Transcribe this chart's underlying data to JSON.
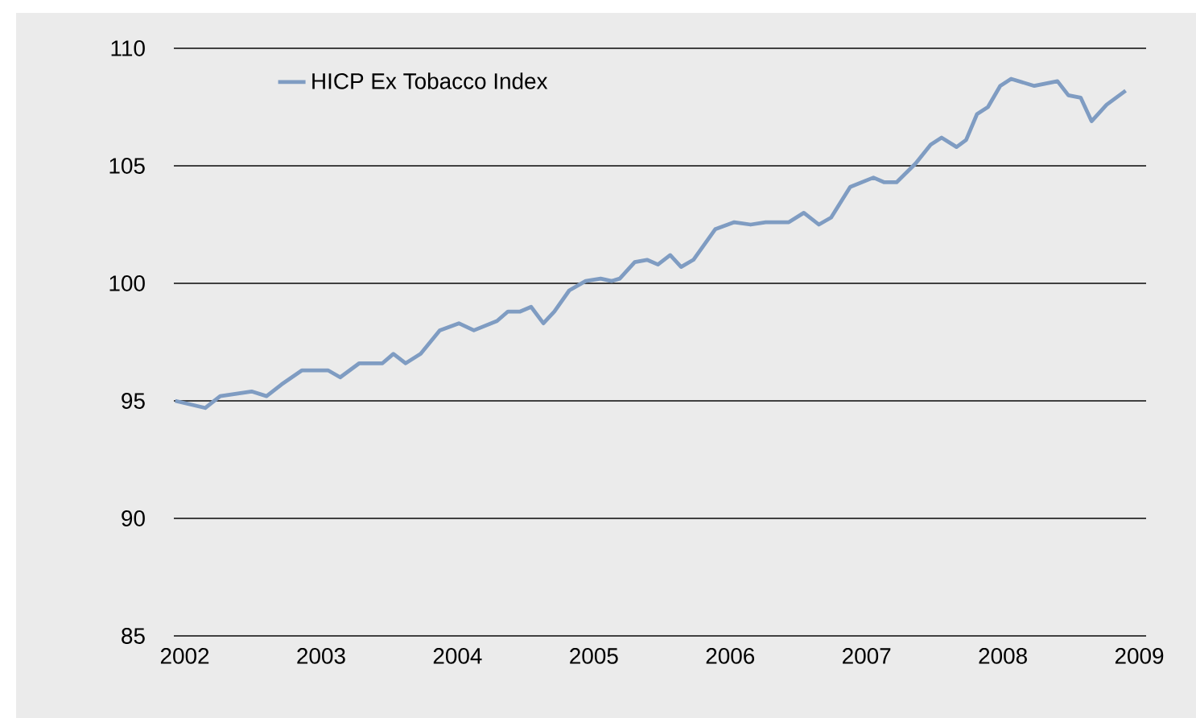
{
  "chart_data": {
    "type": "line",
    "x": [
      2001.93,
      2002.15,
      2002.26,
      2002.38,
      2002.49,
      2002.6,
      2002.71,
      2002.86,
      2003.05,
      2003.14,
      2003.28,
      2003.45,
      2003.53,
      2003.62,
      2003.73,
      2003.87,
      2004.01,
      2004.12,
      2004.29,
      2004.37,
      2004.46,
      2004.54,
      2004.63,
      2004.71,
      2004.82,
      2004.94,
      2005.05,
      2005.13,
      2005.19,
      2005.3,
      2005.39,
      2005.47,
      2005.56,
      2005.64,
      2005.73,
      2005.89,
      2006.03,
      2006.15,
      2006.26,
      2006.43,
      2006.54,
      2006.65,
      2006.74,
      2006.88,
      2007.05,
      2007.13,
      2007.22,
      2007.36,
      2007.47,
      2007.55,
      2007.66,
      2007.73,
      2007.81,
      2007.89,
      2007.98,
      2008.06,
      2008.23,
      2008.4,
      2008.48,
      2008.57,
      2008.65,
      2008.76,
      2008.9
    ],
    "series": [
      {
        "name": "HICP Ex Tobacco Index",
        "color": "#7f9cc2",
        "values": [
          95.0,
          94.7,
          95.2,
          95.3,
          95.4,
          95.2,
          95.7,
          96.3,
          96.3,
          96.0,
          96.6,
          96.6,
          97.0,
          96.6,
          97.0,
          98.0,
          98.3,
          98.0,
          98.4,
          98.8,
          98.8,
          99.0,
          98.3,
          98.8,
          99.7,
          100.1,
          100.2,
          100.1,
          100.2,
          100.9,
          101.0,
          100.8,
          101.2,
          100.7,
          101.0,
          102.3,
          102.6,
          102.5,
          102.6,
          102.6,
          103.0,
          102.5,
          102.8,
          104.1,
          104.5,
          104.3,
          104.3,
          105.1,
          105.9,
          106.2,
          105.8,
          106.1,
          107.2,
          107.5,
          108.4,
          108.7,
          108.4,
          108.6,
          108.0,
          107.9,
          106.9,
          107.6,
          108.2
        ]
      }
    ],
    "xlim": [
      2001.92,
      2009.05
    ],
    "xticks": [
      2002,
      2003,
      2004,
      2005,
      2006,
      2007,
      2008,
      2009
    ],
    "ylim": [
      85,
      110
    ],
    "yticks": [
      85,
      90,
      95,
      100,
      105,
      110
    ],
    "grid": "y",
    "legend": "top left",
    "line_style": "solid"
  }
}
